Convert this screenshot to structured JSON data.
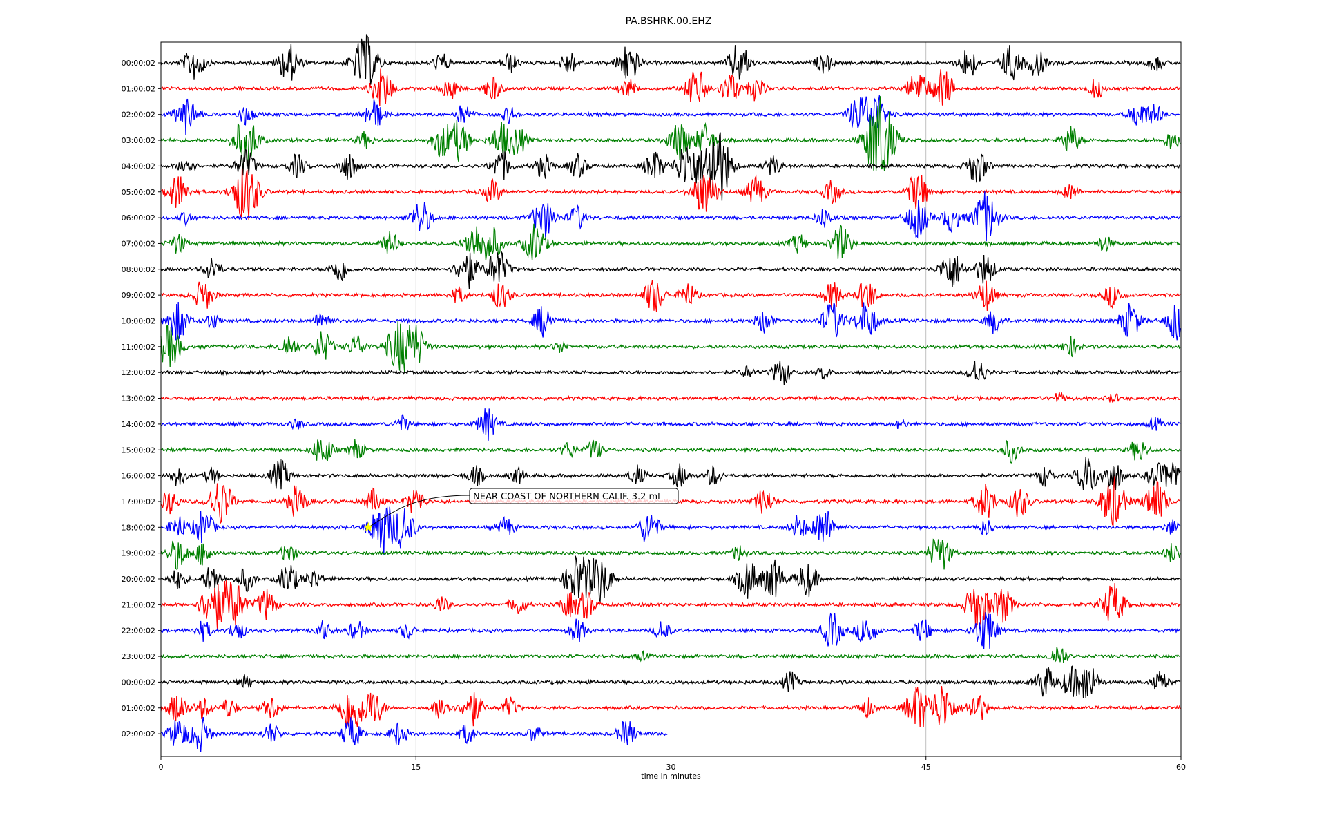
{
  "chart_data": {
    "type": "line",
    "title": "PA.BSHRK.00.EHZ",
    "xlabel": "time in minutes",
    "ylabel": "",
    "xlim": [
      0,
      60
    ],
    "xticks": [
      0,
      15,
      30,
      45,
      60
    ],
    "xtick_labels": [
      "0",
      "15",
      "30",
      "45",
      "60"
    ],
    "vertical_gridlines_at": [
      15,
      30,
      45
    ],
    "trace_colors_cycle": [
      "#000000",
      "#ff0000",
      "#0000ff",
      "#008000"
    ],
    "rows": [
      {
        "label": "00:00:02",
        "color": "#000000",
        "end": 60,
        "bursts": [
          [
            2,
            0.9
          ],
          [
            7.5,
            1.0
          ],
          [
            12,
            1.4
          ],
          [
            16.5,
            0.5
          ],
          [
            20.5,
            0.5
          ],
          [
            24,
            0.6
          ],
          [
            27.5,
            1.0
          ],
          [
            34,
            1.0
          ],
          [
            39,
            0.5
          ],
          [
            47.5,
            0.8
          ],
          [
            50,
            0.9
          ],
          [
            51.5,
            0.7
          ],
          [
            58.5,
            0.4
          ]
        ]
      },
      {
        "label": "01:00:02",
        "color": "#ff0000",
        "end": 60,
        "bursts": [
          [
            13,
            1.0
          ],
          [
            17,
            0.6
          ],
          [
            19.5,
            0.6
          ],
          [
            27.5,
            0.5
          ],
          [
            31.5,
            1.0
          ],
          [
            33.5,
            0.8
          ],
          [
            35,
            0.6
          ],
          [
            44.5,
            0.9
          ],
          [
            46,
            1.0
          ],
          [
            55,
            0.5
          ]
        ]
      },
      {
        "label": "02:00:02",
        "color": "#0000ff",
        "end": 60,
        "bursts": [
          [
            1.5,
            1.0
          ],
          [
            5,
            0.5
          ],
          [
            12.5,
            0.8
          ],
          [
            17.8,
            0.5
          ],
          [
            20.5,
            0.4
          ],
          [
            41,
            0.9
          ],
          [
            42,
            1.1
          ],
          [
            57.5,
            0.7
          ],
          [
            58.5,
            0.5
          ]
        ]
      },
      {
        "label": "03:00:02",
        "color": "#008000",
        "end": 60,
        "bursts": [
          [
            5,
            1.3
          ],
          [
            12,
            0.4
          ],
          [
            16.5,
            0.8
          ],
          [
            17.5,
            1.0
          ],
          [
            20,
            0.9
          ],
          [
            21,
            0.7
          ],
          [
            30.5,
            1.0
          ],
          [
            32,
            0.8
          ],
          [
            42,
            1.2
          ],
          [
            42.5,
            1.5
          ],
          [
            53.5,
            0.7
          ],
          [
            59.5,
            0.5
          ]
        ]
      },
      {
        "label": "04:00:02",
        "color": "#000000",
        "end": 60,
        "bursts": [
          [
            1.5,
            0.5
          ],
          [
            5,
            0.8
          ],
          [
            8,
            0.6
          ],
          [
            11,
            0.7
          ],
          [
            20,
            0.8
          ],
          [
            22.5,
            0.6
          ],
          [
            24.5,
            0.6
          ],
          [
            29,
            0.8
          ],
          [
            31,
            1.3
          ],
          [
            32.5,
            1.4
          ],
          [
            33,
            1.0
          ],
          [
            36,
            0.5
          ],
          [
            48,
            0.9
          ]
        ]
      },
      {
        "label": "05:00:02",
        "color": "#ff0000",
        "end": 60,
        "bursts": [
          [
            1,
            0.9
          ],
          [
            5,
            1.5
          ],
          [
            19.5,
            0.6
          ],
          [
            32,
            1.2
          ],
          [
            35,
            0.8
          ],
          [
            39.5,
            0.6
          ],
          [
            44.5,
            1.0
          ],
          [
            53.5,
            0.4
          ]
        ]
      },
      {
        "label": "06:00:02",
        "color": "#0000ff",
        "end": 60,
        "bursts": [
          [
            1.5,
            0.3
          ],
          [
            15.3,
            0.9
          ],
          [
            22.5,
            1.0
          ],
          [
            24.5,
            0.6
          ],
          [
            39,
            0.5
          ],
          [
            44.5,
            1.0
          ],
          [
            46.5,
            0.7
          ],
          [
            48.5,
            1.3
          ]
        ]
      },
      {
        "label": "07:00:02",
        "color": "#008000",
        "end": 60,
        "bursts": [
          [
            1,
            0.5
          ],
          [
            13.5,
            0.6
          ],
          [
            18.5,
            1.0
          ],
          [
            19.5,
            0.8
          ],
          [
            22,
            1.0
          ],
          [
            37.5,
            0.5
          ],
          [
            40,
            0.9
          ],
          [
            55.5,
            0.4
          ]
        ]
      },
      {
        "label": "08:00:02",
        "color": "#000000",
        "end": 60,
        "bursts": [
          [
            3,
            0.6
          ],
          [
            10.5,
            0.7
          ],
          [
            18,
            1.0
          ],
          [
            19.8,
            1.0
          ],
          [
            46.5,
            1.0
          ],
          [
            48.5,
            0.8
          ]
        ]
      },
      {
        "label": "09:00:02",
        "color": "#ff0000",
        "end": 60,
        "bursts": [
          [
            2.5,
            0.8
          ],
          [
            17.5,
            0.4
          ],
          [
            20,
            0.7
          ],
          [
            29,
            0.9
          ],
          [
            31,
            0.6
          ],
          [
            39.5,
            0.7
          ],
          [
            41.5,
            0.8
          ],
          [
            48.5,
            0.8
          ],
          [
            56,
            0.6
          ]
        ]
      },
      {
        "label": "10:00:02",
        "color": "#0000ff",
        "end": 60,
        "bursts": [
          [
            1,
            1.0
          ],
          [
            3,
            0.4
          ],
          [
            9.5,
            0.5
          ],
          [
            22.5,
            0.8
          ],
          [
            35.5,
            0.6
          ],
          [
            39.5,
            1.0
          ],
          [
            41.5,
            1.0
          ],
          [
            49,
            0.6
          ],
          [
            57,
            0.9
          ],
          [
            59.8,
            1.0
          ]
        ]
      },
      {
        "label": "11:00:02",
        "color": "#008000",
        "end": 60,
        "bursts": [
          [
            0.5,
            1.1
          ],
          [
            7.5,
            0.6
          ],
          [
            9.5,
            0.8
          ],
          [
            11.5,
            0.6
          ],
          [
            14,
            1.3
          ],
          [
            15,
            1.0
          ],
          [
            23.5,
            0.3
          ],
          [
            53.5,
            0.5
          ]
        ]
      },
      {
        "label": "12:00:02",
        "color": "#000000",
        "end": 60,
        "bursts": [
          [
            34.5,
            0.3
          ],
          [
            36.5,
            0.7
          ],
          [
            39,
            0.3
          ],
          [
            48,
            0.7
          ]
        ]
      },
      {
        "label": "13:00:02",
        "color": "#ff0000",
        "end": 60,
        "bursts": [
          [
            52.8,
            0.25
          ],
          [
            56,
            0.2
          ]
        ]
      },
      {
        "label": "14:00:02",
        "color": "#0000ff",
        "end": 60,
        "bursts": [
          [
            8,
            0.25
          ],
          [
            14.2,
            0.4
          ],
          [
            19.2,
            0.8
          ],
          [
            43.5,
            0.2
          ],
          [
            58.5,
            0.3
          ]
        ]
      },
      {
        "label": "15:00:02",
        "color": "#008000",
        "end": 60,
        "bursts": [
          [
            9.5,
            0.8
          ],
          [
            11.5,
            0.5
          ],
          [
            24,
            0.4
          ],
          [
            25.5,
            0.5
          ],
          [
            50,
            0.6
          ],
          [
            57.5,
            0.6
          ]
        ]
      },
      {
        "label": "16:00:02",
        "color": "#000000",
        "end": 60,
        "bursts": [
          [
            1,
            0.5
          ],
          [
            3,
            0.4
          ],
          [
            7,
            0.8
          ],
          [
            18.5,
            0.5
          ],
          [
            21,
            0.4
          ],
          [
            28,
            0.5
          ],
          [
            30.5,
            0.6
          ],
          [
            32.5,
            0.5
          ],
          [
            52,
            0.5
          ],
          [
            54.5,
            1.0
          ],
          [
            56,
            0.8
          ],
          [
            58.5,
            0.6
          ],
          [
            59.5,
            0.8
          ]
        ]
      },
      {
        "label": "17:00:02",
        "color": "#ff0000",
        "end": 60,
        "bursts": [
          [
            0.5,
            0.6
          ],
          [
            3.5,
            1.2
          ],
          [
            8,
            0.8
          ],
          [
            12.5,
            0.6
          ],
          [
            15,
            0.7
          ],
          [
            35.5,
            0.7
          ],
          [
            48.5,
            0.9
          ],
          [
            50.5,
            0.8
          ],
          [
            56,
            1.3
          ],
          [
            58.5,
            1.1
          ]
        ]
      },
      {
        "label": "18:00:02",
        "color": "#0000ff",
        "end": 60,
        "bursts": [
          [
            1,
            0.6
          ],
          [
            2.5,
            0.9
          ],
          [
            13,
            1.4
          ],
          [
            14.3,
            1.0
          ],
          [
            20.3,
            0.5
          ],
          [
            28.7,
            0.9
          ],
          [
            37.5,
            0.6
          ],
          [
            39,
            1.0
          ],
          [
            48.5,
            0.4
          ],
          [
            59.5,
            0.4
          ]
        ]
      },
      {
        "label": "19:00:02",
        "color": "#008000",
        "end": 60,
        "bursts": [
          [
            1,
            0.8
          ],
          [
            2.5,
            0.6
          ],
          [
            7.5,
            0.5
          ],
          [
            34,
            0.4
          ],
          [
            45.8,
            1.0
          ],
          [
            59.5,
            0.5
          ]
        ]
      },
      {
        "label": "20:00:02",
        "color": "#000000",
        "end": 60,
        "bursts": [
          [
            1,
            0.5
          ],
          [
            3,
            0.7
          ],
          [
            5,
            0.6
          ],
          [
            7.5,
            0.8
          ],
          [
            9,
            0.5
          ],
          [
            24.5,
            1.3
          ],
          [
            25.8,
            1.2
          ],
          [
            34.5,
            1.0
          ],
          [
            36,
            1.0
          ],
          [
            38,
            0.9
          ]
        ]
      },
      {
        "label": "21:00:02",
        "color": "#ff0000",
        "end": 60,
        "bursts": [
          [
            3,
            1.2
          ],
          [
            4.2,
            1.3
          ],
          [
            6.2,
            0.8
          ],
          [
            16.5,
            0.4
          ],
          [
            21,
            0.5
          ],
          [
            24,
            0.6
          ],
          [
            25,
            0.7
          ],
          [
            48,
            1.2
          ],
          [
            49.5,
            0.9
          ],
          [
            56,
            1.1
          ]
        ]
      },
      {
        "label": "22:00:02",
        "color": "#0000ff",
        "end": 60,
        "bursts": [
          [
            2.5,
            0.5
          ],
          [
            4.5,
            0.5
          ],
          [
            9.5,
            0.5
          ],
          [
            11.5,
            0.5
          ],
          [
            14.5,
            0.4
          ],
          [
            24.5,
            0.6
          ],
          [
            29.5,
            0.5
          ],
          [
            39.5,
            0.9
          ],
          [
            41.5,
            0.8
          ],
          [
            44.8,
            0.6
          ],
          [
            48.5,
            1.1
          ]
        ]
      },
      {
        "label": "23:00:02",
        "color": "#008000",
        "end": 60,
        "bursts": [
          [
            28.3,
            0.2
          ],
          [
            52.8,
            0.6
          ]
        ]
      },
      {
        "label": "00:00:02",
        "color": "#000000",
        "end": 60,
        "bursts": [
          [
            5,
            0.3
          ],
          [
            37,
            0.5
          ],
          [
            52,
            0.8
          ],
          [
            53.5,
            0.7
          ],
          [
            54.5,
            1.0
          ],
          [
            58.8,
            0.5
          ]
        ]
      },
      {
        "label": "01:00:02",
        "color": "#ff0000",
        "end": 60,
        "bursts": [
          [
            1,
            0.8
          ],
          [
            2.5,
            0.5
          ],
          [
            4,
            0.5
          ],
          [
            6.5,
            0.6
          ],
          [
            11.2,
            1.3
          ],
          [
            12.5,
            0.9
          ],
          [
            16.5,
            0.6
          ],
          [
            18.3,
            0.9
          ],
          [
            20.5,
            0.5
          ],
          [
            41.5,
            0.5
          ],
          [
            44.5,
            1.2
          ],
          [
            46,
            1.2
          ],
          [
            48,
            0.8
          ]
        ]
      },
      {
        "label": "02:00:02",
        "color": "#0000ff",
        "end": 29.8,
        "bursts": [
          [
            1,
            0.8
          ],
          [
            2.3,
            0.9
          ],
          [
            6.5,
            0.5
          ],
          [
            11.2,
            0.8
          ],
          [
            14,
            0.6
          ],
          [
            18,
            0.5
          ],
          [
            22,
            0.4
          ],
          [
            27.4,
            0.7
          ]
        ]
      }
    ],
    "annotations": [
      {
        "text": "NEAR COAST OF NORTHERN CALIF. 3.2 ml",
        "row": 18,
        "x": 12.2
      }
    ]
  }
}
